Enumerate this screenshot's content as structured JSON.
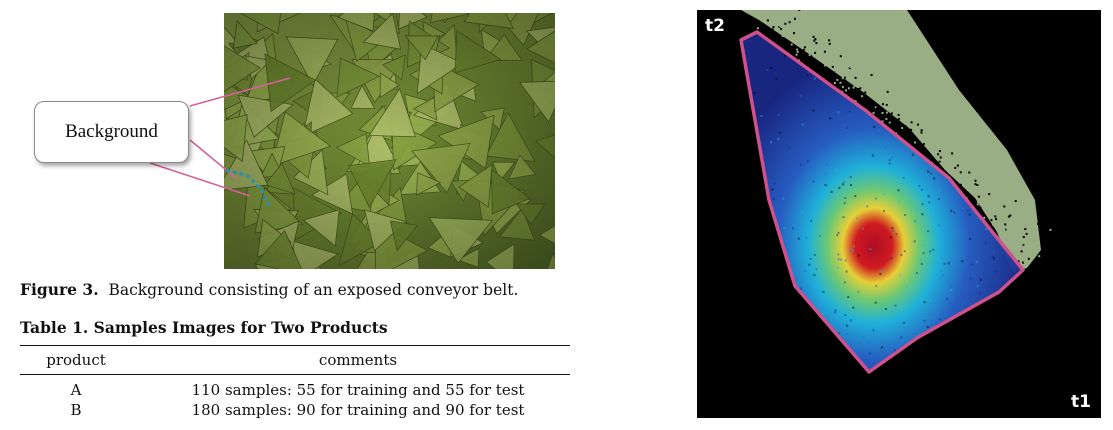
{
  "figure3": {
    "callout_label": "Background",
    "caption_label": "Figure 3.",
    "caption_text": "Background consisting of an exposed conveyor belt."
  },
  "table1": {
    "title": "Table 1.  Samples Images for Two Products",
    "headers": [
      "product",
      "comments"
    ],
    "rows": [
      {
        "product": "A",
        "comments": "110 samples:  55 for training and 55 for test"
      },
      {
        "product": "B",
        "comments": "180 samples:  90 for training and 90 for test"
      }
    ]
  },
  "score_plot": {
    "x_axis_label": "t1",
    "y_axis_label": "t2",
    "colors": {
      "background": "#000000",
      "mask_region": "#9aae86",
      "boundary": "#d0508c",
      "density_low": "#1a2a8c",
      "density_mid": "#1fb6e0",
      "density_high": "#c0102a"
    }
  }
}
